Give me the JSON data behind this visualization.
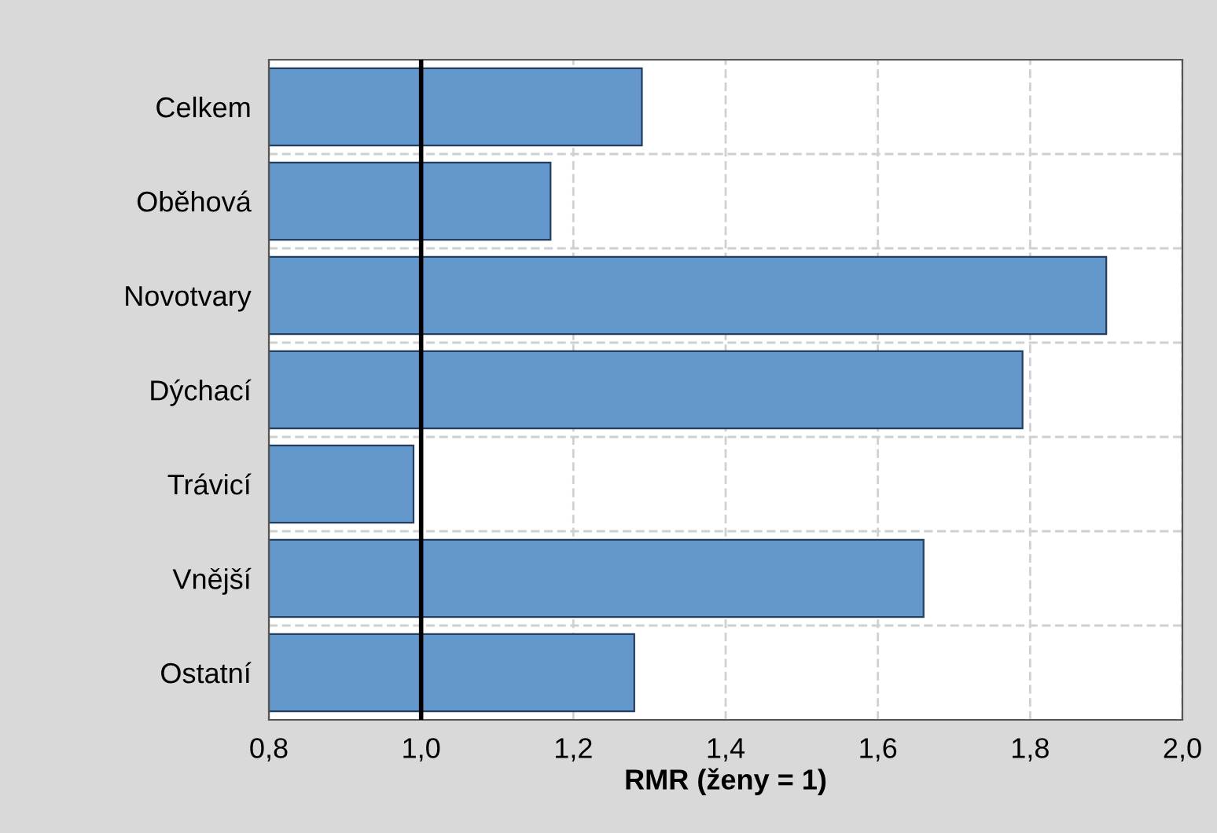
{
  "chart_data": {
    "type": "bar",
    "orientation": "horizontal",
    "xlabel": "RMR (ženy = 1)",
    "categories": [
      "Celkem",
      "Oběhová",
      "Novotvary",
      "Dýchací",
      "Trávicí",
      "Vnější",
      "Ostatní"
    ],
    "values": [
      1.29,
      1.17,
      1.9,
      1.79,
      0.99,
      1.66,
      1.28
    ],
    "color": "#6497cb",
    "xlim": [
      0.8,
      2.0
    ],
    "xticks": [
      {
        "value": 0.8,
        "label": "0,8"
      },
      {
        "value": 1.0,
        "label": "1,0"
      },
      {
        "value": 1.2,
        "label": "1,2"
      },
      {
        "value": 1.4,
        "label": "1,4"
      },
      {
        "value": 1.6,
        "label": "1,6"
      },
      {
        "value": 1.8,
        "label": "1,8"
      },
      {
        "value": 2.0,
        "label": "2,0"
      }
    ],
    "ref_lines": [
      {
        "axis": "x",
        "value": 1.0,
        "color": "#000000",
        "line_style": "solid"
      }
    ],
    "grid": true
  }
}
